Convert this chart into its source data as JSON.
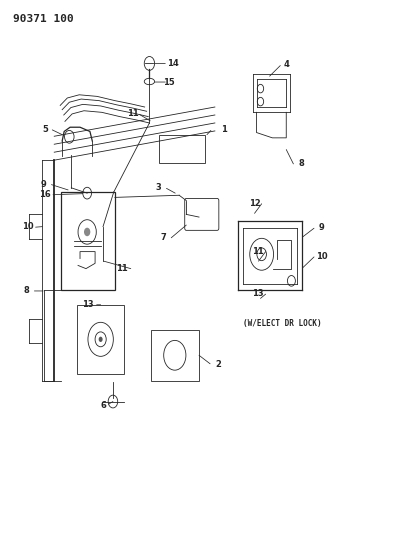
{
  "title_code": "90371 100",
  "bg": "#ffffff",
  "lc": "#252525",
  "figsize": [
    3.98,
    5.33
  ],
  "dpi": 100,
  "elect_text": "(W/ELECT DR LOCK)"
}
